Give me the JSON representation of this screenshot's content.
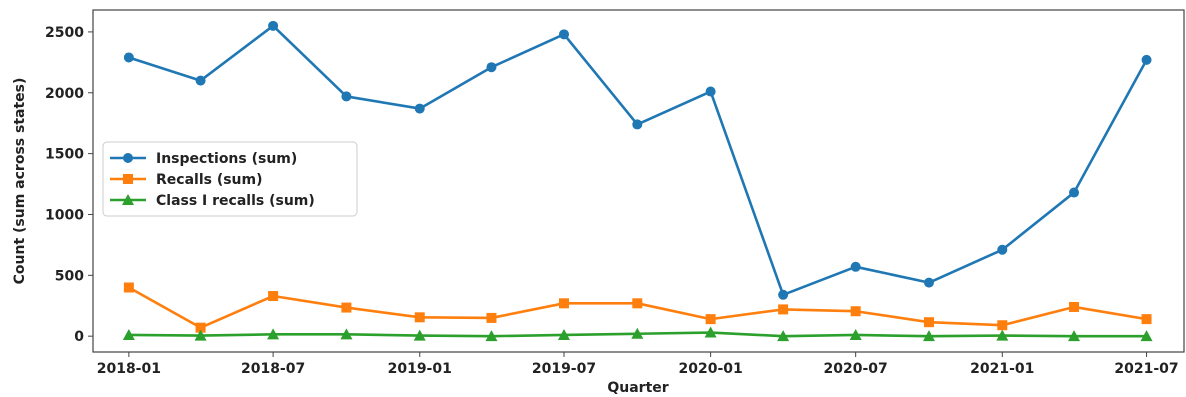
{
  "chart_data": {
    "type": "line",
    "title": "",
    "xlabel": "Quarter",
    "ylabel": "Count (sum across states)",
    "x": [
      "2018-01-01",
      "2018-04-01",
      "2018-07-01",
      "2018-10-01",
      "2019-01-01",
      "2019-04-01",
      "2019-07-01",
      "2019-10-01",
      "2020-01-01",
      "2020-04-01",
      "2020-07-01",
      "2020-10-01",
      "2021-01-01",
      "2021-04-01",
      "2021-07-01"
    ],
    "x_ticks": [
      "2018-01",
      "2018-07",
      "2019-01",
      "2019-07",
      "2020-01",
      "2020-07",
      "2021-01",
      "2021-07"
    ],
    "y_ticks": [
      0,
      500,
      1000,
      1500,
      2000,
      2500
    ],
    "ylim": [
      -130,
      2680
    ],
    "xlim": [
      "2017-11-17",
      "2021-08-17"
    ],
    "grid": false,
    "legend_position": "center-left",
    "series": [
      {
        "name": "Inspections (sum)",
        "color": "#1f77b4",
        "marker": "circle",
        "values": [
          2290,
          2100,
          2550,
          1970,
          1870,
          2210,
          2480,
          1740,
          2010,
          340,
          570,
          440,
          710,
          1180,
          2270
        ]
      },
      {
        "name": "Recalls (sum)",
        "color": "#ff7f0e",
        "marker": "square",
        "values": [
          400,
          70,
          330,
          235,
          155,
          150,
          270,
          270,
          140,
          220,
          205,
          115,
          90,
          240,
          140
        ]
      },
      {
        "name": "Class I recalls (sum)",
        "color": "#2ca02c",
        "marker": "triangle",
        "values": [
          10,
          5,
          15,
          15,
          5,
          0,
          10,
          20,
          30,
          0,
          10,
          0,
          5,
          0,
          0
        ]
      }
    ]
  }
}
